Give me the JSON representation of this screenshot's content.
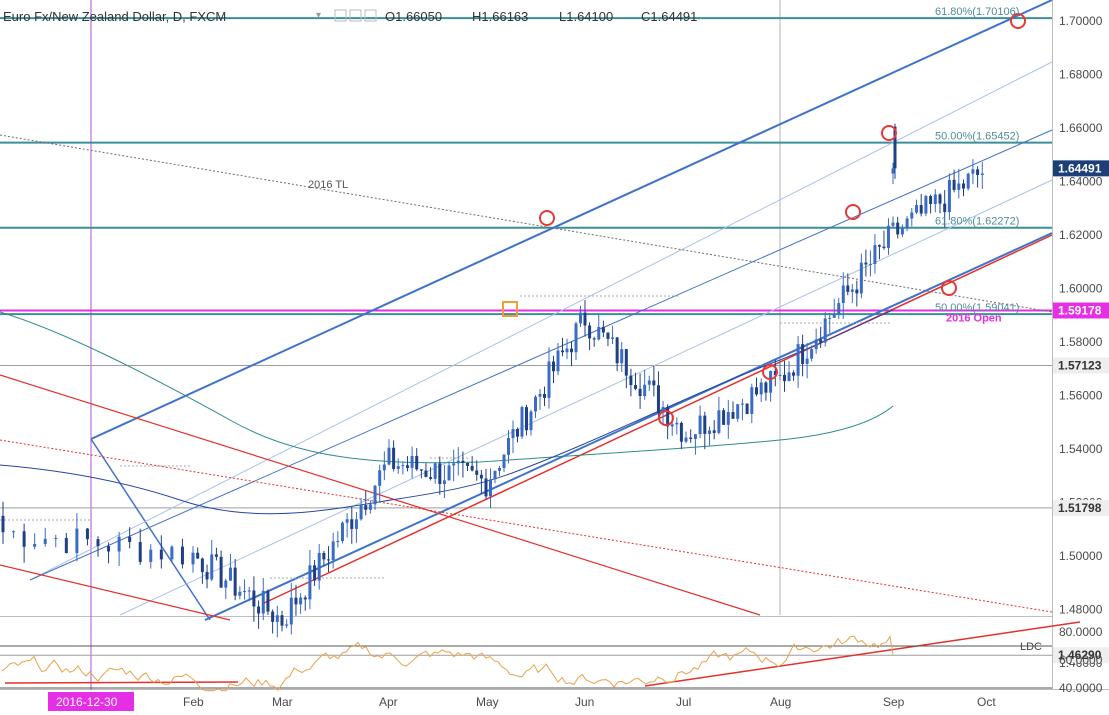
{
  "header": {
    "symbol": "Euro Fx/New Zealand Dollar, D, FXCM",
    "open_label": "O1.66050",
    "high_label": "H1.66163",
    "low_label": "L1.64100",
    "close_label": "C1.64491",
    "icons": [
      "chevron-down-icon",
      "eye-icon",
      "settings-icon",
      "close-icon"
    ]
  },
  "colors": {
    "up": "#3a6cc7",
    "down": "#1f3f86",
    "channel": "#3f72c9",
    "channel_light": "#a9c2ea",
    "red": "#e5302b",
    "magenta": "#e62ee6",
    "teal": "#3d8e99",
    "marker": "#e53935",
    "rsi": "#e8a24b",
    "axis_text": "#4a4a4a",
    "price_tag": "#1c3f7a"
  },
  "chart_data": {
    "type": "candlestick",
    "title": "Euro Fx/New Zealand Dollar, D, FXCM",
    "ohlc_last": {
      "open": 1.6605,
      "high": 1.66163,
      "low": 1.641,
      "close": 1.64491
    },
    "y_axis": {
      "ticks": [
        "1.70000",
        "1.68000",
        "1.66000",
        "1.64000",
        "1.62000",
        "1.60000",
        "1.58000",
        "1.56000",
        "1.54000",
        "1.52000",
        "1.50000",
        "1.48000",
        "1.46000"
      ],
      "ylim": [
        1.4525,
        1.7115
      ]
    },
    "x_axis": {
      "ticks": [
        "2016-12-30",
        "Feb",
        "Mar",
        "Apr",
        "May",
        "Jun",
        "Jul",
        "Aug",
        "Sep",
        "Oct"
      ]
    },
    "price_tag": "1.64491",
    "levels": [
      {
        "value": 1.70106,
        "label": "61.80%(1.70106)",
        "tag": ""
      },
      {
        "value": 1.65452,
        "label": "50.00%(1.65452)",
        "tag": ""
      },
      {
        "value": 1.62272,
        "label": "61.80%(1.62272)",
        "tag": ""
      },
      {
        "value": 1.59041,
        "label": "50.00%(1.59041)",
        "tag": ""
      },
      {
        "value": 1.59178,
        "label": "2016 Open",
        "tag": "1.59178"
      },
      {
        "value": 1.57123,
        "label": "",
        "tag": "1.57123"
      },
      {
        "value": 1.51798,
        "label": "",
        "tag": "1.51798"
      },
      {
        "value": 1.4629,
        "label": "LDC",
        "tag": "1.46290"
      }
    ],
    "annotations": [
      "2016 TL",
      "2016 Open",
      "LDC"
    ],
    "rsi": {
      "ticks": [
        "80.0000",
        "60.0000",
        "40.0000"
      ],
      "ylim": [
        35,
        90
      ],
      "levels": [
        70,
        40
      ]
    },
    "monthly_path": [
      {
        "month": "2016-12-30",
        "close": 1.509
      },
      {
        "month": "Jan",
        "close": 1.5005
      },
      {
        "month": "Feb",
        "close": 1.476
      },
      {
        "month": "Mar",
        "close": 1.535
      },
      {
        "month": "Apr",
        "close": 1.528
      },
      {
        "month": "May",
        "close": 1.589
      },
      {
        "month": "Jun",
        "close": 1.546
      },
      {
        "month": "Jul",
        "close": 1.566
      },
      {
        "month": "Aug",
        "close": 1.62
      },
      {
        "month": "Sep",
        "close": 1.6449
      }
    ]
  }
}
